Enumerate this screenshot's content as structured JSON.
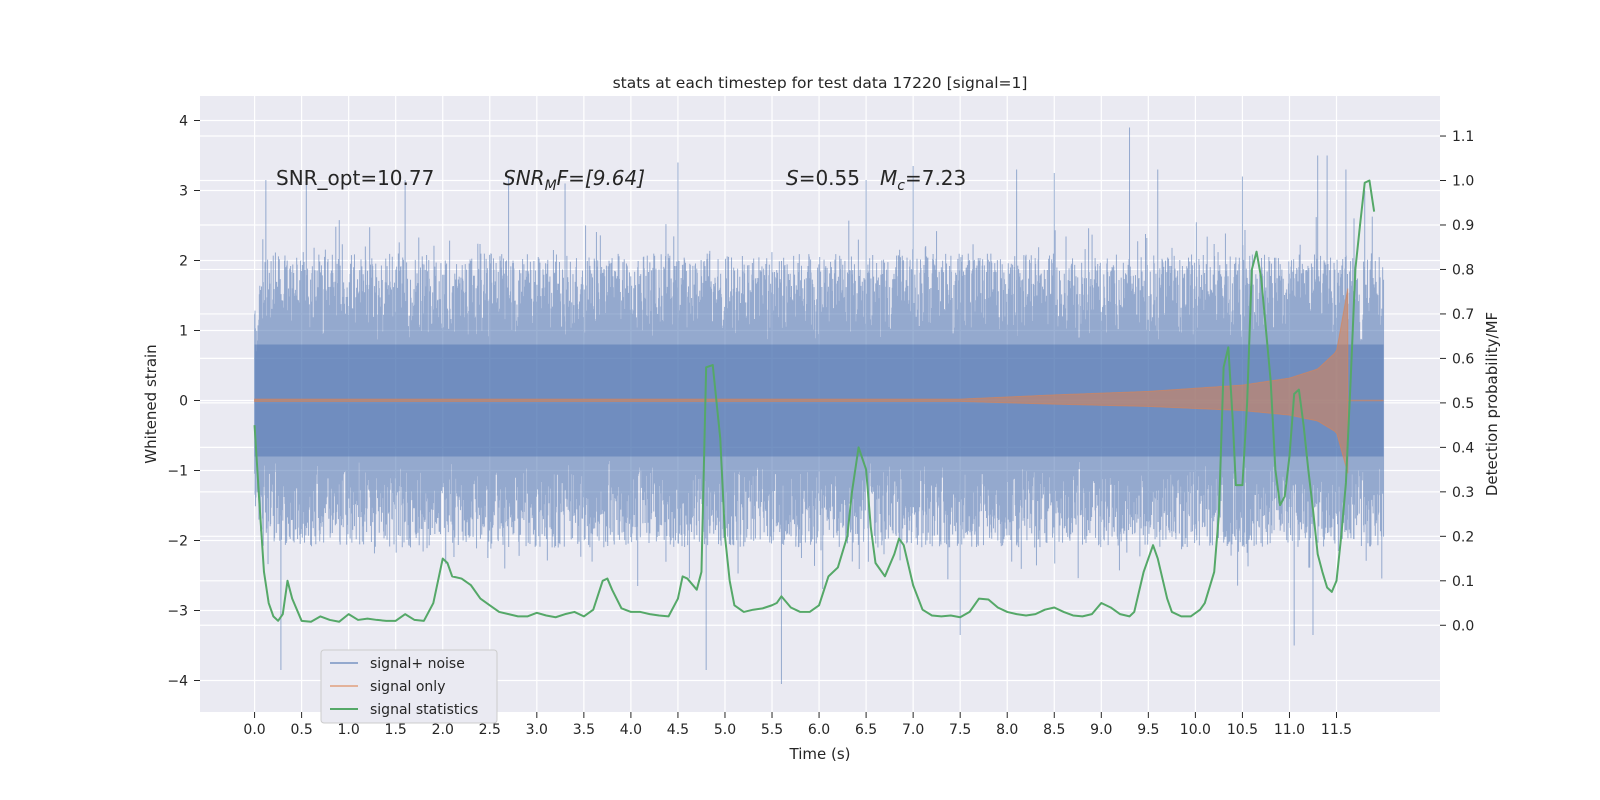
{
  "chart_data": {
    "type": "line",
    "title": "stats at each timestep for test data 17220 [signal=1]",
    "xlabel": "Time (s)",
    "ylabel": "Whitened strain",
    "y2label": "Detection probability/MF",
    "xlim": [
      -0.58,
      12.6
    ],
    "ylim": [
      -4.45,
      4.35
    ],
    "y2lim": [
      -0.195,
      1.19
    ],
    "x_ticks": [
      0.0,
      0.5,
      1.0,
      1.5,
      2.0,
      2.5,
      3.0,
      3.5,
      4.0,
      4.5,
      5.0,
      5.5,
      6.0,
      6.5,
      7.0,
      7.5,
      8.0,
      8.5,
      9.0,
      9.5,
      10.0,
      10.5,
      11.0,
      11.5
    ],
    "x_tick_labels": [
      "0.0",
      "0.5",
      "1.0",
      "1.5",
      "2.0",
      "2.5",
      "3.0",
      "3.5",
      "4.0",
      "4.5",
      "5.0",
      "5.5",
      "6.0",
      "6.5",
      "7.0",
      "7.5",
      "8.0",
      "8.5",
      "9.0",
      "9.5",
      "10.0",
      "10.5",
      "11.0",
      "11.5"
    ],
    "y_ticks": [
      -4,
      -3,
      -2,
      -1,
      0,
      1,
      2,
      3,
      4
    ],
    "y_tick_labels": [
      "−4",
      "−3",
      "−2",
      "−1",
      "0",
      "1",
      "2",
      "3",
      "4"
    ],
    "y2_ticks": [
      0.0,
      0.1,
      0.2,
      0.3,
      0.4,
      0.5,
      0.6,
      0.7,
      0.8,
      0.9,
      1.0,
      1.1
    ],
    "y2_tick_labels": [
      "0.0",
      "0.1",
      "0.2",
      "0.3",
      "0.4",
      "0.5",
      "0.6",
      "0.7",
      "0.8",
      "0.9",
      "1.0",
      "1.1"
    ],
    "grid": true,
    "legend_position": "bottom-left",
    "annotations": {
      "snr_opt": "SNR_opt=10.77",
      "snr_mf_main": "SNR",
      "snr_mf_sub": "M",
      "snr_mf_rest": "F=[9.64]",
      "s_symbol": "S",
      "s_value": "=0.55",
      "mc_symbol": "M",
      "mc_sub": "c",
      "mc_value": "=7.23"
    },
    "series": [
      {
        "name": "signal+ noise",
        "color": "#4c72b0",
        "kind": "noise",
        "t_range": [
          0.0,
          12.0
        ],
        "envelope": [
          {
            "t": 0.0,
            "min": -1.5,
            "max": 1.3
          },
          {
            "t": 0.1,
            "min": -2.1,
            "max": 2.1
          },
          {
            "t": 12.0,
            "min": -2.1,
            "max": 2.1
          }
        ],
        "extremes": [
          {
            "t": 0.12,
            "y": 3.15
          },
          {
            "t": 0.28,
            "y": -3.85
          },
          {
            "t": 0.55,
            "y": 3.1
          },
          {
            "t": 1.6,
            "y": 3.15
          },
          {
            "t": 2.7,
            "y": 3.2
          },
          {
            "t": 3.3,
            "y": 3.1
          },
          {
            "t": 4.5,
            "y": 3.4
          },
          {
            "t": 4.8,
            "y": -3.85
          },
          {
            "t": 5.6,
            "y": -4.05
          },
          {
            "t": 6.5,
            "y": 3.15
          },
          {
            "t": 7.0,
            "y": 3.35
          },
          {
            "t": 7.5,
            "y": -3.35
          },
          {
            "t": 8.1,
            "y": 3.3
          },
          {
            "t": 8.5,
            "y": 3.25
          },
          {
            "t": 9.3,
            "y": 3.9
          },
          {
            "t": 9.6,
            "y": 3.3
          },
          {
            "t": 10.5,
            "y": 3.2
          },
          {
            "t": 11.05,
            "y": -3.5
          },
          {
            "t": 11.25,
            "y": -3.35
          },
          {
            "t": 11.3,
            "y": 3.5
          },
          {
            "t": 11.4,
            "y": 3.5
          },
          {
            "t": 11.6,
            "y": 3.3
          },
          {
            "t": 11.8,
            "y": 3.0
          }
        ]
      },
      {
        "name": "signal only",
        "color": "#dd8452",
        "kind": "chirp",
        "t_range": [
          0.0,
          11.62
        ],
        "amplitude": [
          {
            "t": 0.0,
            "a": 0.02
          },
          {
            "t": 7.5,
            "a": 0.02
          },
          {
            "t": 8.5,
            "a": 0.08
          },
          {
            "t": 9.5,
            "a": 0.13
          },
          {
            "t": 10.5,
            "a": 0.22
          },
          {
            "t": 11.0,
            "a": 0.32
          },
          {
            "t": 11.3,
            "a": 0.45
          },
          {
            "t": 11.5,
            "a": 0.7
          },
          {
            "t": 11.62,
            "a": 1.6
          }
        ],
        "tail_end": 12.0
      },
      {
        "name": "signal statistics",
        "color": "#55a868",
        "kind": "line",
        "axis": "right",
        "points": [
          [
            0.0,
            0.45
          ],
          [
            0.05,
            0.28
          ],
          [
            0.1,
            0.12
          ],
          [
            0.15,
            0.05
          ],
          [
            0.2,
            0.02
          ],
          [
            0.25,
            0.01
          ],
          [
            0.3,
            0.025
          ],
          [
            0.35,
            0.1
          ],
          [
            0.4,
            0.06
          ],
          [
            0.5,
            0.01
          ],
          [
            0.6,
            0.008
          ],
          [
            0.7,
            0.02
          ],
          [
            0.8,
            0.012
          ],
          [
            0.9,
            0.008
          ],
          [
            1.0,
            0.025
          ],
          [
            1.1,
            0.012
          ],
          [
            1.2,
            0.015
          ],
          [
            1.3,
            0.012
          ],
          [
            1.4,
            0.01
          ],
          [
            1.5,
            0.01
          ],
          [
            1.6,
            0.025
          ],
          [
            1.7,
            0.012
          ],
          [
            1.8,
            0.01
          ],
          [
            1.9,
            0.05
          ],
          [
            2.0,
            0.15
          ],
          [
            2.05,
            0.14
          ],
          [
            2.1,
            0.11
          ],
          [
            2.2,
            0.105
          ],
          [
            2.3,
            0.09
          ],
          [
            2.4,
            0.06
          ],
          [
            2.5,
            0.045
          ],
          [
            2.6,
            0.03
          ],
          [
            2.7,
            0.025
          ],
          [
            2.8,
            0.02
          ],
          [
            2.9,
            0.02
          ],
          [
            3.0,
            0.028
          ],
          [
            3.1,
            0.022
          ],
          [
            3.2,
            0.018
          ],
          [
            3.3,
            0.025
          ],
          [
            3.4,
            0.03
          ],
          [
            3.5,
            0.02
          ],
          [
            3.6,
            0.035
          ],
          [
            3.7,
            0.1
          ],
          [
            3.75,
            0.105
          ],
          [
            3.8,
            0.08
          ],
          [
            3.9,
            0.038
          ],
          [
            4.0,
            0.03
          ],
          [
            4.1,
            0.03
          ],
          [
            4.2,
            0.025
          ],
          [
            4.3,
            0.022
          ],
          [
            4.4,
            0.02
          ],
          [
            4.5,
            0.06
          ],
          [
            4.55,
            0.11
          ],
          [
            4.6,
            0.105
          ],
          [
            4.7,
            0.08
          ],
          [
            4.75,
            0.12
          ],
          [
            4.8,
            0.58
          ],
          [
            4.87,
            0.585
          ],
          [
            4.95,
            0.42
          ],
          [
            5.0,
            0.2
          ],
          [
            5.05,
            0.1
          ],
          [
            5.1,
            0.045
          ],
          [
            5.2,
            0.03
          ],
          [
            5.3,
            0.035
          ],
          [
            5.4,
            0.038
          ],
          [
            5.5,
            0.045
          ],
          [
            5.55,
            0.05
          ],
          [
            5.6,
            0.065
          ],
          [
            5.7,
            0.04
          ],
          [
            5.8,
            0.03
          ],
          [
            5.9,
            0.03
          ],
          [
            6.0,
            0.045
          ],
          [
            6.1,
            0.11
          ],
          [
            6.2,
            0.13
          ],
          [
            6.3,
            0.2
          ],
          [
            6.35,
            0.3
          ],
          [
            6.42,
            0.4
          ],
          [
            6.5,
            0.35
          ],
          [
            6.55,
            0.22
          ],
          [
            6.6,
            0.14
          ],
          [
            6.7,
            0.11
          ],
          [
            6.8,
            0.16
          ],
          [
            6.85,
            0.195
          ],
          [
            6.9,
            0.18
          ],
          [
            7.0,
            0.09
          ],
          [
            7.1,
            0.035
          ],
          [
            7.2,
            0.022
          ],
          [
            7.3,
            0.02
          ],
          [
            7.4,
            0.022
          ],
          [
            7.5,
            0.018
          ],
          [
            7.6,
            0.03
          ],
          [
            7.7,
            0.06
          ],
          [
            7.8,
            0.058
          ],
          [
            7.9,
            0.04
          ],
          [
            8.0,
            0.03
          ],
          [
            8.1,
            0.025
          ],
          [
            8.2,
            0.022
          ],
          [
            8.3,
            0.025
          ],
          [
            8.4,
            0.035
          ],
          [
            8.5,
            0.04
          ],
          [
            8.6,
            0.03
          ],
          [
            8.7,
            0.022
          ],
          [
            8.8,
            0.02
          ],
          [
            8.9,
            0.025
          ],
          [
            9.0,
            0.05
          ],
          [
            9.1,
            0.04
          ],
          [
            9.2,
            0.025
          ],
          [
            9.3,
            0.02
          ],
          [
            9.35,
            0.03
          ],
          [
            9.45,
            0.12
          ],
          [
            9.55,
            0.18
          ],
          [
            9.6,
            0.15
          ],
          [
            9.7,
            0.06
          ],
          [
            9.75,
            0.03
          ],
          [
            9.85,
            0.02
          ],
          [
            9.95,
            0.02
          ],
          [
            10.05,
            0.035
          ],
          [
            10.1,
            0.05
          ],
          [
            10.2,
            0.12
          ],
          [
            10.25,
            0.25
          ],
          [
            10.3,
            0.58
          ],
          [
            10.35,
            0.625
          ],
          [
            10.4,
            0.45
          ],
          [
            10.43,
            0.315
          ],
          [
            10.5,
            0.315
          ],
          [
            10.55,
            0.5
          ],
          [
            10.6,
            0.8
          ],
          [
            10.65,
            0.84
          ],
          [
            10.7,
            0.78
          ],
          [
            10.8,
            0.55
          ],
          [
            10.85,
            0.35
          ],
          [
            10.9,
            0.27
          ],
          [
            10.95,
            0.29
          ],
          [
            11.0,
            0.38
          ],
          [
            11.05,
            0.52
          ],
          [
            11.1,
            0.53
          ],
          [
            11.15,
            0.45
          ],
          [
            11.2,
            0.35
          ],
          [
            11.25,
            0.26
          ],
          [
            11.3,
            0.16
          ],
          [
            11.35,
            0.12
          ],
          [
            11.4,
            0.085
          ],
          [
            11.45,
            0.075
          ],
          [
            11.5,
            0.1
          ],
          [
            11.55,
            0.2
          ],
          [
            11.6,
            0.32
          ],
          [
            11.65,
            0.55
          ],
          [
            11.7,
            0.8
          ],
          [
            11.75,
            0.9
          ],
          [
            11.8,
            0.995
          ],
          [
            11.85,
            1.0
          ],
          [
            11.9,
            0.93
          ]
        ]
      }
    ]
  }
}
